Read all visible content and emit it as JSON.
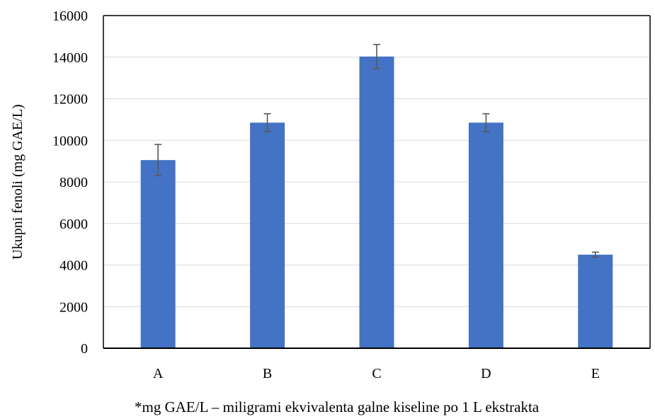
{
  "chart_data": {
    "type": "bar",
    "categories": [
      "A",
      "B",
      "C",
      "D",
      "E"
    ],
    "values": [
      9050,
      10850,
      14030,
      10850,
      4500
    ],
    "error": [
      750,
      430,
      580,
      430,
      120
    ],
    "ylabel": "Ukupni fenoli (mg GAE/L)",
    "xlabel": "",
    "ylim": [
      0,
      16000
    ],
    "yticks": [
      0,
      2000,
      4000,
      6000,
      8000,
      10000,
      12000,
      14000,
      16000
    ],
    "grid": true,
    "legend": "none",
    "bar_color": "#4472C4",
    "error_color": "#595959"
  },
  "footnote": "*mg GAE/L – miligrami ekvivalenta galne kiseline po 1 L ekstrakta"
}
